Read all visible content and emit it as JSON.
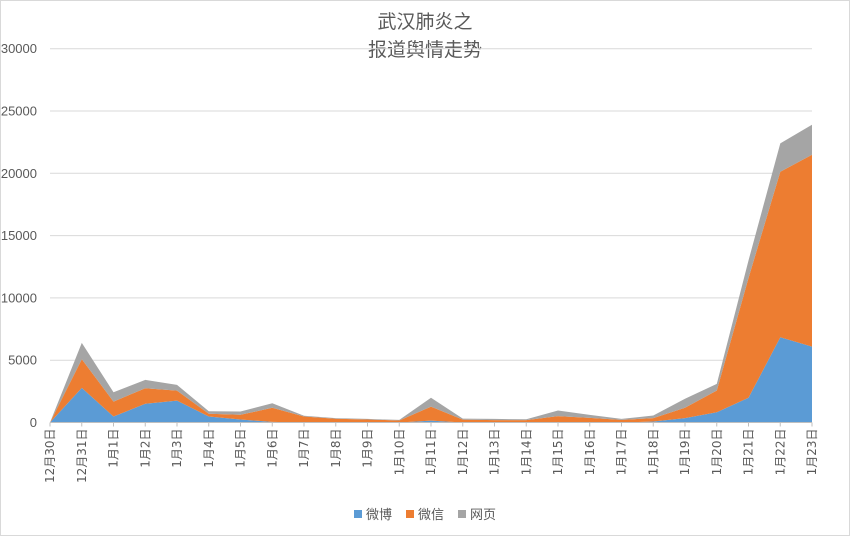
{
  "chart_data": {
    "type": "area",
    "stacked": true,
    "title": "武汉肺炎之\n报道舆情走势",
    "title_lines": [
      "武汉肺炎之",
      "报道舆情走势"
    ],
    "xlabel": "",
    "ylabel": "",
    "ylim": [
      0,
      30000
    ],
    "yticks": [
      "0",
      "5000",
      "10000",
      "15000",
      "20000",
      "25000",
      "30000"
    ],
    "grid": true,
    "legend_position": "bottom",
    "categories": [
      "12月30日",
      "12月31日",
      "1月1日",
      "1月2日",
      "1月3日",
      "1月4日",
      "1月5日",
      "1月6日",
      "1月7日",
      "1月8日",
      "1月9日",
      "1月10日",
      "1月11日",
      "1月12日",
      "1月13日",
      "1月14日",
      "1月15日",
      "1月16日",
      "1月17日",
      "1月18日",
      "1月19日",
      "1月20日",
      "1月21日",
      "1月22日",
      "1月23日"
    ],
    "series": [
      {
        "name": "微博",
        "color": "#5B9BD5",
        "values": [
          0,
          2780,
          480,
          1500,
          1760,
          480,
          240,
          50,
          0,
          0,
          0,
          0,
          150,
          0,
          0,
          0,
          0,
          0,
          0,
          80,
          350,
          830,
          1980,
          6840,
          6090
        ]
      },
      {
        "name": "微信",
        "color": "#ED7D31",
        "values": [
          0,
          2300,
          1200,
          1250,
          800,
          220,
          380,
          1130,
          480,
          300,
          240,
          160,
          1130,
          230,
          190,
          190,
          510,
          370,
          210,
          270,
          830,
          1740,
          9620,
          13290,
          15400
        ]
      },
      {
        "name": "网页",
        "color": "#A5A5A5",
        "values": [
          0,
          1310,
          750,
          670,
          460,
          210,
          260,
          370,
          60,
          50,
          50,
          50,
          700,
          80,
          100,
          70,
          450,
          240,
          80,
          210,
          720,
          530,
          1400,
          2270,
          2410
        ]
      }
    ]
  },
  "colors": {
    "gridline": "#d9d9d9",
    "axis": "#bfbfbf",
    "text": "#595959"
  }
}
